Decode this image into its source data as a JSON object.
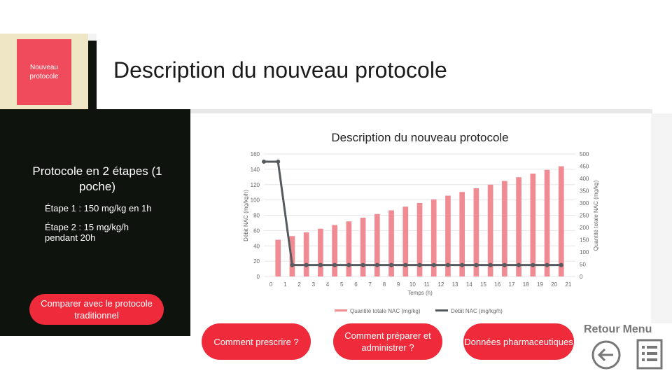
{
  "header": {
    "section_tile": "Nouveau protocole",
    "title": "Description du nouveau protocole"
  },
  "panel": {
    "heading": "Protocole en 2 étapes (1 poche)",
    "step1": "Étape 1 : 150 mg/kg en 1h",
    "step2": "Étape 2 : 15 mg/kg/h pendant 20h"
  },
  "buttons": {
    "compare": "Comparer avec le protocole traditionnel",
    "prescribe": "Comment prescrire ?",
    "prepare": "Comment préparer et administrer ?",
    "pharma": "Données pharmaceutiques"
  },
  "nav": {
    "retour": "Retour",
    "menu": "Menu",
    "back_icon": "arrow-left-circle-icon",
    "menu_icon": "list-document-icon"
  },
  "colors": {
    "accent_red": "#ef2b3b",
    "tile_red": "#ef4b5c",
    "bar_pink": "#f08a93",
    "line_gray": "#555a5e",
    "dark_panel": "#0e130e"
  },
  "chart_data": {
    "type": "bar+line",
    "title": "Description du nouveau protocole",
    "xlabel": "Temps (h)",
    "ylabel_left": "Débit NAC (mg/kg/h)",
    "ylabel_right": "Quantité totale NAC (mg/kg)",
    "x_ticks": [
      "0",
      "1",
      "2",
      "3",
      "4",
      "5",
      "6",
      "7",
      "8",
      "9",
      "10",
      "11",
      "12",
      "13",
      "14",
      "15",
      "16",
      "17",
      "18",
      "19",
      "20",
      "21"
    ],
    "ylim_left": [
      0,
      160
    ],
    "yticks_left": [
      "0",
      "20",
      "40",
      "60",
      "80",
      "100",
      "120",
      "140",
      "160"
    ],
    "ylim_right": [
      0,
      500
    ],
    "yticks_right": [
      "0",
      "50",
      "100",
      "150",
      "200",
      "250",
      "300",
      "350",
      "400",
      "450",
      "500"
    ],
    "legend": [
      "Quantité totale NAC (mg/kg)",
      "Débit NAC (mg/kg/h)"
    ],
    "legend_position": "bottom",
    "grid": true,
    "bars": {
      "name": "Quantité totale NAC (mg/kg)",
      "axis": "right",
      "x": [
        1,
        2,
        3,
        4,
        5,
        6,
        7,
        8,
        9,
        10,
        11,
        12,
        13,
        14,
        15,
        16,
        17,
        18,
        19,
        20,
        21
      ],
      "values": [
        150,
        165,
        180,
        195,
        210,
        225,
        240,
        255,
        270,
        285,
        300,
        315,
        330,
        345,
        360,
        375,
        390,
        405,
        420,
        435,
        450
      ]
    },
    "line": {
      "name": "Débit NAC (mg/kg/h)",
      "axis": "left",
      "x": [
        0,
        1,
        2,
        3,
        4,
        5,
        6,
        7,
        8,
        9,
        10,
        11,
        12,
        13,
        14,
        15,
        16,
        17,
        18,
        19,
        20,
        21
      ],
      "values": [
        150,
        150,
        15,
        15,
        15,
        15,
        15,
        15,
        15,
        15,
        15,
        15,
        15,
        15,
        15,
        15,
        15,
        15,
        15,
        15,
        15,
        15
      ]
    }
  }
}
